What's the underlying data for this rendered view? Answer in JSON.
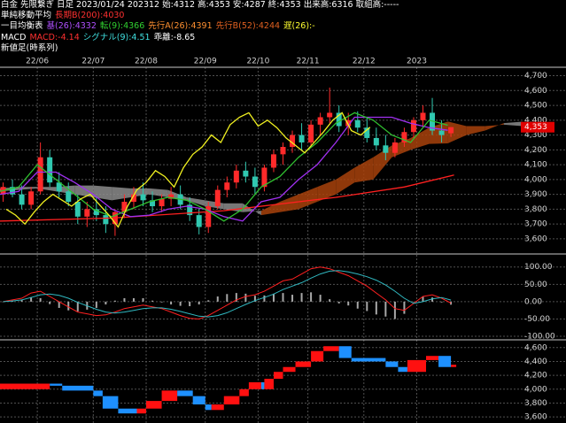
{
  "header": {
    "lines": [
      [
        {
          "text": "白金 先限繋ぎ 日足 2023/01/24 202312 始:4312 高:4353 安:4287 終:4353 出来高:6316 取組高:-----",
          "color": "#ffffff"
        }
      ],
      [
        {
          "text": "単純移動平均",
          "color": "#ffffff"
        },
        {
          "text": "長期B(200):4030",
          "color": "#ff3030"
        }
      ],
      [
        {
          "text": "一目均衡表",
          "color": "#ffffff"
        },
        {
          "text": "基(26):4332",
          "color": "#b050ff"
        },
        {
          "text": "転(9):4366",
          "color": "#30d030"
        },
        {
          "text": "先行A(26):4391",
          "color": "#ff9030"
        },
        {
          "text": "先行B(52):4244",
          "color": "#e06020"
        },
        {
          "text": "遅(26):-",
          "color": "#ffff30"
        }
      ],
      [
        {
          "text": "MACD",
          "color": "#ffffff"
        },
        {
          "text": "MACD:-4.14",
          "color": "#ff3030"
        },
        {
          "text": "シグナル(9):4.51",
          "color": "#40e0e0"
        },
        {
          "text": "乖離:-8.65",
          "color": "#ffffff"
        }
      ],
      [
        {
          "text": "新値足(時系列)",
          "color": "#ffffff"
        }
      ]
    ]
  },
  "chart_data": [
    {
      "type": "candlestick",
      "xlim": [
        0,
        182
      ],
      "xticks": [
        {
          "value": 12,
          "label": "22/06"
        },
        {
          "value": 30,
          "label": "22/07"
        },
        {
          "value": 47,
          "label": "22/08"
        },
        {
          "value": 66,
          "label": "22/09"
        },
        {
          "value": 83,
          "label": "22/10"
        },
        {
          "value": 99,
          "label": "22/11"
        },
        {
          "value": 117,
          "label": "22/12"
        },
        {
          "value": 134,
          "label": "2023"
        }
      ],
      "ylim": [
        3510,
        4745
      ],
      "yticks": [
        {
          "value": 3600,
          "label": "3,600"
        },
        {
          "value": 3700,
          "label": "3,700"
        },
        {
          "value": 3800,
          "label": "3,800"
        },
        {
          "value": 3900,
          "label": "3,900"
        },
        {
          "value": 4000,
          "label": "4,000"
        },
        {
          "value": 4100,
          "label": "4,100"
        },
        {
          "value": 4200,
          "label": "4,200"
        },
        {
          "value": 4300,
          "label": "4,300"
        },
        {
          "value": 4400,
          "label": "4,400"
        },
        {
          "value": 4500,
          "label": "4,500"
        },
        {
          "value": 4600,
          "label": "4,600"
        },
        {
          "value": 4700,
          "label": "4,700"
        }
      ],
      "grid": true,
      "up_color": "#ff2a2a",
      "down_color": "#30c8b0",
      "candles": {
        "x": [
          1,
          4,
          7,
          10,
          13,
          16,
          19,
          22,
          25,
          28,
          31,
          34,
          37,
          40,
          43,
          46,
          49,
          52,
          55,
          58,
          61,
          64,
          67,
          70,
          73,
          76,
          79,
          82,
          85,
          88,
          91,
          94,
          97,
          100,
          103,
          106,
          109,
          112,
          115,
          118,
          121,
          124,
          127,
          130,
          133,
          136,
          139,
          142,
          145
        ],
        "open": [
          3900,
          3950,
          3900,
          3830,
          3920,
          4150,
          3980,
          3920,
          3850,
          3750,
          3800,
          3760,
          3700,
          3780,
          3850,
          3900,
          3860,
          3820,
          3870,
          3900,
          3830,
          3760,
          3680,
          3820,
          3930,
          3980,
          4060,
          4020,
          3950,
          4080,
          4170,
          4220,
          4300,
          4250,
          4370,
          4420,
          4450,
          4360,
          4400,
          4350,
          4280,
          4230,
          4180,
          4250,
          4320,
          4400,
          4450,
          4330,
          4312
        ],
        "high": [
          3980,
          4000,
          3960,
          3950,
          4250,
          4200,
          4050,
          3980,
          3900,
          3850,
          3880,
          3820,
          3800,
          3900,
          3950,
          3980,
          3920,
          3900,
          3950,
          3960,
          3880,
          3800,
          3850,
          3960,
          4020,
          4100,
          4120,
          4080,
          4100,
          4200,
          4250,
          4330,
          4380,
          4400,
          4450,
          4620,
          4500,
          4450,
          4460,
          4420,
          4350,
          4300,
          4280,
          4350,
          4420,
          4500,
          4550,
          4400,
          4353
        ],
        "low": [
          3850,
          3880,
          3800,
          3800,
          3900,
          3950,
          3880,
          3820,
          3700,
          3680,
          3720,
          3640,
          3620,
          3740,
          3800,
          3820,
          3780,
          3780,
          3820,
          3800,
          3720,
          3630,
          3640,
          3800,
          3880,
          3940,
          3980,
          3900,
          3920,
          4050,
          4100,
          4180,
          4200,
          4220,
          4300,
          4380,
          4320,
          4300,
          4320,
          4250,
          4200,
          4130,
          4150,
          4220,
          4280,
          4350,
          4300,
          4250,
          4287
        ],
        "close": [
          3950,
          3900,
          3830,
          3920,
          4150,
          3980,
          3920,
          3850,
          3750,
          3800,
          3760,
          3700,
          3780,
          3850,
          3900,
          3860,
          3820,
          3870,
          3900,
          3830,
          3760,
          3680,
          3820,
          3930,
          3980,
          4060,
          4020,
          3950,
          4080,
          4170,
          4220,
          4300,
          4250,
          4370,
          4420,
          4450,
          4360,
          4400,
          4350,
          4280,
          4230,
          4180,
          4250,
          4320,
          4400,
          4450,
          4330,
          4300,
          4353
        ]
      },
      "cloud": {
        "x": [
          0,
          6,
          12,
          18,
          24,
          30,
          36,
          42,
          48,
          54,
          60,
          66,
          72,
          78,
          84,
          90,
          96,
          102,
          108,
          114,
          120,
          126,
          132,
          138,
          144,
          150,
          156,
          162,
          168
        ],
        "span_a": [
          3920,
          3930,
          3940,
          3920,
          3900,
          3880,
          3860,
          3880,
          3900,
          3880,
          3860,
          3820,
          3800,
          3780,
          3790,
          3850,
          3900,
          3950,
          4000,
          4080,
          4150,
          4230,
          4280,
          4350,
          4391,
          4360,
          4360,
          4370,
          4360
        ],
        "span_b": [
          3940,
          3950,
          3950,
          3950,
          3960,
          3960,
          3950,
          3940,
          3940,
          3930,
          3880,
          3860,
          3840,
          3840,
          3760,
          3780,
          3800,
          3850,
          3900,
          3980,
          4000,
          4150,
          4200,
          4240,
          4244,
          4300,
          4330,
          4380,
          4390
        ],
        "up_color": "#a8420c",
        "down_color": "#8c8c8c"
      },
      "series": [
        {
          "color": "#ff2020",
          "x": [
            0,
            36,
            72,
            108,
            130,
            146
          ],
          "values": [
            3720,
            3740,
            3790,
            3880,
            3950,
            4030
          ]
        },
        {
          "color": "#a030f0",
          "x": [
            0,
            6,
            12,
            18,
            24,
            30,
            36,
            42,
            48,
            54,
            60,
            66,
            72,
            78,
            84,
            90,
            96,
            102,
            108,
            114,
            120,
            126,
            132,
            138,
            144
          ],
          "values": [
            3900,
            3920,
            4050,
            4050,
            3980,
            3900,
            3800,
            3750,
            3760,
            3800,
            3820,
            3800,
            3750,
            3720,
            3850,
            3880,
            4000,
            4100,
            4250,
            4420,
            4420,
            4420,
            4380,
            4350,
            4332
          ]
        },
        {
          "color": "#30c030",
          "x": [
            0,
            6,
            12,
            18,
            24,
            30,
            36,
            42,
            48,
            54,
            60,
            66,
            72,
            78,
            84,
            90,
            96,
            102,
            108,
            114,
            120,
            126,
            132,
            138,
            144
          ],
          "values": [
            3920,
            3950,
            4100,
            4000,
            3900,
            3800,
            3750,
            3800,
            3850,
            3880,
            3860,
            3800,
            3720,
            3800,
            3950,
            4020,
            4150,
            4250,
            4380,
            4450,
            4400,
            4300,
            4250,
            4400,
            4366
          ]
        },
        {
          "color": "#f0f020",
          "x": [
            2,
            5,
            8,
            11,
            14,
            17,
            20,
            23,
            26,
            29,
            32,
            35,
            38,
            41,
            44,
            47,
            50,
            53,
            56,
            59,
            62,
            65,
            68,
            71,
            74,
            77,
            80,
            83,
            86,
            89,
            92,
            95,
            98,
            101,
            104,
            107,
            110,
            113,
            116,
            119
          ],
          "values": [
            3800,
            3760,
            3700,
            3780,
            3850,
            3900,
            3860,
            3820,
            3870,
            3900,
            3830,
            3760,
            3680,
            3820,
            3930,
            3980,
            4060,
            4020,
            3950,
            4080,
            4170,
            4220,
            4300,
            4250,
            4370,
            4420,
            4450,
            4360,
            4400,
            4350,
            4280,
            4230,
            4180,
            4250,
            4320,
            4400,
            4450,
            4330,
            4300,
            4353
          ]
        }
      ],
      "price_label": {
        "value": 4353,
        "label": "4,353"
      },
      "price_label_color": "#e00000"
    },
    {
      "type": "line",
      "xlim": [
        0,
        182
      ],
      "ylim": [
        -105,
        130
      ],
      "yticks": [
        {
          "value": -100,
          "label": "-100.00"
        },
        {
          "value": -50,
          "label": "-50.00"
        },
        {
          "value": 0,
          "label": "0.00"
        },
        {
          "value": 50,
          "label": "50.00"
        },
        {
          "value": 100,
          "label": "100.00"
        }
      ],
      "grid": true,
      "x": [
        1,
        4,
        7,
        10,
        13,
        16,
        19,
        22,
        25,
        28,
        31,
        34,
        37,
        40,
        43,
        46,
        49,
        52,
        55,
        58,
        61,
        64,
        67,
        70,
        73,
        76,
        79,
        82,
        85,
        88,
        91,
        94,
        97,
        100,
        103,
        106,
        109,
        112,
        115,
        118,
        121,
        124,
        127,
        130,
        133,
        136,
        139,
        142,
        145
      ],
      "series": [
        {
          "kind": "bar",
          "color": "#a8a8a8",
          "values": [
            0,
            3,
            5,
            13,
            10,
            -7,
            -18,
            -25,
            -28,
            -23,
            -18,
            -8,
            3,
            10,
            10,
            10,
            3,
            -2,
            -8,
            -12,
            -13,
            -8,
            4,
            15,
            22,
            25,
            23,
            17,
            18,
            23,
            25,
            20,
            25,
            27,
            20,
            7,
            -5,
            -11,
            -20,
            -27,
            -37,
            -43,
            -50,
            -35,
            0,
            15,
            12,
            -2,
            -8.65
          ]
        },
        {
          "kind": "line",
          "color": "#ff2020",
          "values": [
            0,
            5,
            10,
            25,
            30,
            15,
            0,
            -15,
            -30,
            -35,
            -40,
            -38,
            -30,
            -20,
            -15,
            -10,
            -15,
            -20,
            -30,
            -40,
            -48,
            -50,
            -40,
            -25,
            -10,
            5,
            15,
            20,
            30,
            45,
            60,
            65,
            80,
            95,
            100,
            95,
            85,
            75,
            60,
            45,
            25,
            5,
            -20,
            -25,
            -5,
            15,
            20,
            10,
            -4.14
          ]
        },
        {
          "kind": "line",
          "color": "#30b8c0",
          "values": [
            0,
            2,
            5,
            12,
            20,
            22,
            18,
            10,
            -2,
            -12,
            -22,
            -30,
            -33,
            -30,
            -25,
            -20,
            -18,
            -18,
            -22,
            -28,
            -35,
            -42,
            -44,
            -40,
            -32,
            -20,
            -8,
            3,
            12,
            22,
            35,
            45,
            55,
            68,
            80,
            88,
            90,
            86,
            80,
            72,
            62,
            48,
            30,
            10,
            -5,
            0,
            8,
            12,
            4.51
          ]
        }
      ]
    },
    {
      "type": "bar",
      "xlim": [
        0,
        182
      ],
      "ylim": [
        3512,
        4687
      ],
      "yticks": [
        {
          "value": 3600,
          "label": "3,600"
        },
        {
          "value": 3800,
          "label": "3,800"
        },
        {
          "value": 4000,
          "label": "4,000"
        },
        {
          "value": 4200,
          "label": "4,200"
        },
        {
          "value": 4400,
          "label": "4,400"
        },
        {
          "value": 4600,
          "label": "4,600"
        }
      ],
      "grid": true,
      "up_color": "#ff1010",
      "down_color": "#1e90ff",
      "columns": {
        "x": [
          0,
          16,
          20,
          30,
          33,
          38,
          44,
          47,
          52,
          57,
          62,
          66,
          68,
          72,
          77,
          80,
          84,
          85,
          88,
          91,
          95,
          100,
          104,
          109,
          113,
          124,
          128,
          131,
          137,
          141,
          145
        ],
        "open": [
          4000,
          4080,
          4050,
          3980,
          3900,
          3720,
          3650,
          3720,
          3830,
          3980,
          3900,
          3780,
          3700,
          3780,
          3900,
          4000,
          4100,
          4000,
          4150,
          4250,
          4320,
          4400,
          4550,
          4620,
          4450,
          4400,
          4320,
          4250,
          4420,
          4480,
          4320
        ],
        "close": [
          4080,
          4050,
          3980,
          3900,
          3720,
          3650,
          3720,
          3830,
          3980,
          3900,
          3780,
          3700,
          3780,
          3900,
          4000,
          4100,
          4000,
          4150,
          4250,
          4320,
          4400,
          4550,
          4620,
          4450,
          4400,
          4320,
          4250,
          4420,
          4480,
          4320,
          4353
        ]
      }
    }
  ]
}
